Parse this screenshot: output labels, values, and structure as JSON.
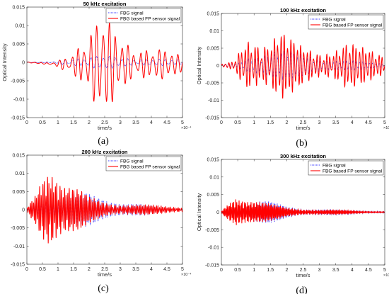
{
  "chart_data": [
    {
      "type": "line",
      "title": "50 kHz excitation",
      "xlabel": "time/s",
      "ylabel": "Optical Intensity",
      "caption": "(a)",
      "x_exponent": "×10⁻⁴",
      "xlim": [
        0,
        5
      ],
      "ylim": [
        -0.015,
        0.015
      ],
      "x_ticks": [
        "0",
        "0.5",
        "1",
        "1.5",
        "2",
        "2.5",
        "3",
        "3.5",
        "4",
        "4.5",
        "5"
      ],
      "y_ticks": [
        "0.015",
        "0.01",
        "0.005",
        "0",
        "-0.005",
        "-0.01",
        "-0.015"
      ],
      "show_xlabel": true,
      "show_ylabel": true,
      "legend_position": "top-right",
      "series": [
        {
          "name": "FBG signal",
          "color": "#3b3bff",
          "style": "dotted",
          "envelope": [
            [
              0,
              0.0001
            ],
            [
              0.8,
              0.0001
            ],
            [
              1.0,
              0.0005
            ],
            [
              1.5,
              0.0012
            ],
            [
              2.3,
              0.0015
            ],
            [
              3.0,
              0.0013
            ],
            [
              4.0,
              0.0009
            ],
            [
              5.0,
              0.0005
            ]
          ],
          "freq": 5,
          "dc": 0
        },
        {
          "name": "FBG based FP sensor signal",
          "color": "#ff0000",
          "style": "solid",
          "envelope": [
            [
              0,
              0.0001
            ],
            [
              0.8,
              0.0002
            ],
            [
              1.0,
              0.0008
            ],
            [
              1.5,
              0.004
            ],
            [
              1.8,
              0.0072
            ],
            [
              2.2,
              0.0095
            ],
            [
              2.5,
              0.0105
            ],
            [
              2.7,
              0.009
            ],
            [
              3.0,
              0.007
            ],
            [
              3.4,
              0.0055
            ],
            [
              4.0,
              0.0042
            ],
            [
              4.5,
              0.003
            ],
            [
              5.0,
              0.002
            ]
          ],
          "freq": 5,
          "dc": -0.0005
        }
      ]
    },
    {
      "type": "line",
      "title": "100 kHz excitation",
      "xlabel": "time/s",
      "ylabel": "Optical Intensity",
      "caption": "(b)",
      "x_exponent": "×10⁻⁴",
      "xlim": [
        0,
        5
      ],
      "ylim": [
        -0.015,
        0.015
      ],
      "x_ticks": [
        "0",
        "0.5",
        "1",
        "1.5",
        "2",
        "2.5",
        "3",
        "3.5",
        "4",
        "4.5",
        "5"
      ],
      "y_ticks": [
        "0.015",
        "0.01",
        "0.005",
        "0",
        "-0.005",
        "-0.01",
        "-0.015"
      ],
      "show_xlabel": true,
      "show_ylabel": true,
      "legend_position": "top-right",
      "series": [
        {
          "name": "FBG signal",
          "color": "#3b3bff",
          "style": "dotted",
          "envelope": [
            [
              0,
              0.0002
            ],
            [
              0.5,
              0.0005
            ],
            [
              0.9,
              0.0025
            ],
            [
              1.5,
              0.004
            ],
            [
              2.0,
              0.0035
            ],
            [
              2.5,
              0.0025
            ],
            [
              3.5,
              0.0015
            ],
            [
              4.5,
              0.0008
            ],
            [
              5.0,
              0.0005
            ]
          ],
          "freq": 10,
          "dc": 0
        },
        {
          "name": "FBG based FP sensor signal",
          "color": "#ff0000",
          "style": "solid",
          "envelope": [
            [
              0,
              0.0003
            ],
            [
              0.4,
              0.001
            ],
            [
              0.7,
              0.006
            ],
            [
              0.9,
              0.0085
            ],
            [
              1.2,
              0.007
            ],
            [
              1.5,
              0.0075
            ],
            [
              1.8,
              0.0095
            ],
            [
              2.0,
              0.007
            ],
            [
              2.5,
              0.0045
            ],
            [
              3.0,
              0.004
            ],
            [
              3.5,
              0.005
            ],
            [
              3.8,
              0.006
            ],
            [
              4.2,
              0.0045
            ],
            [
              5.0,
              0.003
            ]
          ],
          "freq": 10,
          "dc": 0
        }
      ]
    },
    {
      "type": "line",
      "title": "200 kHz excitation",
      "xlabel": "time/s",
      "ylabel": "Optical Intensity",
      "caption": "(c)",
      "x_exponent": "×10⁻⁴",
      "xlim": [
        0,
        5
      ],
      "ylim": [
        -0.015,
        0.015
      ],
      "x_ticks": [
        "0",
        "0.5",
        "1",
        "1.5",
        "2",
        "2.5",
        "3",
        "3.5",
        "4",
        "4.5",
        "5"
      ],
      "y_ticks": [
        "0.015",
        "0.01",
        "0.005",
        "0",
        "-0.005",
        "-0.01",
        "-0.015"
      ],
      "show_xlabel": true,
      "show_ylabel": false,
      "legend_position": "top-right",
      "series": [
        {
          "name": "FBG signal",
          "color": "#3b3bff",
          "style": "dotted",
          "envelope": [
            [
              0,
              0.0002
            ],
            [
              0.3,
              0.002
            ],
            [
              0.6,
              0.006
            ],
            [
              0.9,
              0.0065
            ],
            [
              1.3,
              0.005
            ],
            [
              1.8,
              0.004
            ],
            [
              2.3,
              0.003
            ],
            [
              3.0,
              0.002
            ],
            [
              4.0,
              0.001
            ],
            [
              5.0,
              0.0005
            ]
          ],
          "freq": 20,
          "dc": 0
        },
        {
          "name": "FBG based FP sensor signal",
          "color": "#ff0000",
          "style": "solid",
          "envelope": [
            [
              0,
              0.0003
            ],
            [
              0.3,
              0.004
            ],
            [
              0.5,
              0.009
            ],
            [
              0.75,
              0.013
            ],
            [
              0.9,
              0.011
            ],
            [
              1.2,
              0.007
            ],
            [
              1.6,
              0.005
            ],
            [
              2.0,
              0.003
            ],
            [
              2.5,
              0.002
            ],
            [
              3.0,
              0.0015
            ],
            [
              4.0,
              0.001
            ],
            [
              5.0,
              0.0007
            ]
          ],
          "freq": 20,
          "dc": 0
        }
      ]
    },
    {
      "type": "line",
      "title": "300 kHz excitation",
      "xlabel": "time/s",
      "ylabel": "Optical Intensity",
      "caption": "(d)",
      "x_exponent": "×10⁻⁴",
      "xlim": [
        0,
        5
      ],
      "ylim": [
        -0.015,
        0.015
      ],
      "x_ticks": [
        "0",
        "0.5",
        "1",
        "1.5",
        "2",
        "2.5",
        "3",
        "3.5",
        "4",
        "4.5",
        "5"
      ],
      "y_ticks": [
        "0.015",
        "0.01",
        "0.005",
        "0",
        "-0.005",
        "-0.01",
        "-0.015"
      ],
      "show_xlabel": true,
      "show_ylabel": true,
      "legend_position": "top-right",
      "series": [
        {
          "name": "FBG signal",
          "color": "#3b3bff",
          "style": "dotted",
          "envelope": [
            [
              0,
              0.0002
            ],
            [
              0.3,
              0.002
            ],
            [
              0.6,
              0.003
            ],
            [
              1.0,
              0.003
            ],
            [
              1.5,
              0.0025
            ],
            [
              2.0,
              0.0015
            ],
            [
              2.5,
              0.001
            ],
            [
              3.5,
              0.0006
            ],
            [
              5.0,
              0.0003
            ]
          ],
          "freq": 30,
          "dc": 0
        },
        {
          "name": "FBG based FP sensor signal",
          "color": "#ff0000",
          "style": "solid",
          "envelope": [
            [
              0,
              0.0002
            ],
            [
              0.25,
              0.003
            ],
            [
              0.45,
              0.005
            ],
            [
              0.7,
              0.004
            ],
            [
              1.0,
              0.003
            ],
            [
              1.5,
              0.002
            ],
            [
              2.0,
              0.0012
            ],
            [
              2.5,
              0.0009
            ],
            [
              3.0,
              0.0006
            ],
            [
              4.0,
              0.0004
            ],
            [
              5.0,
              0.0002
            ]
          ],
          "freq": 30,
          "dc": 0
        }
      ]
    }
  ]
}
